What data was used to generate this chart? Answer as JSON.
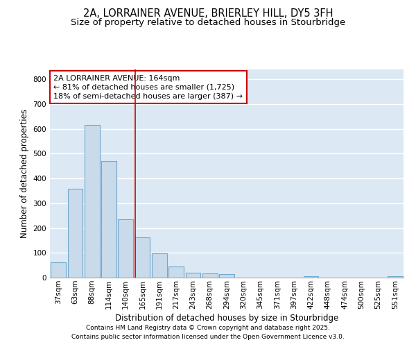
{
  "title_line1": "2A, LORRAINER AVENUE, BRIERLEY HILL, DY5 3FH",
  "title_line2": "Size of property relative to detached houses in Stourbridge",
  "xlabel": "Distribution of detached houses by size in Stourbridge",
  "ylabel": "Number of detached properties",
  "categories": [
    "37sqm",
    "63sqm",
    "88sqm",
    "114sqm",
    "140sqm",
    "165sqm",
    "191sqm",
    "217sqm",
    "243sqm",
    "268sqm",
    "294sqm",
    "320sqm",
    "345sqm",
    "371sqm",
    "397sqm",
    "422sqm",
    "448sqm",
    "474sqm",
    "500sqm",
    "525sqm",
    "551sqm"
  ],
  "values": [
    62,
    358,
    617,
    470,
    235,
    162,
    98,
    46,
    20,
    17,
    13,
    0,
    0,
    0,
    0,
    7,
    0,
    0,
    0,
    0,
    5
  ],
  "bar_color": "#c9daea",
  "bar_edge_color": "#6fa8cc",
  "vline_color": "#cc0000",
  "vline_x_index": 5,
  "annotation_text": "2A LORRAINER AVENUE: 164sqm\n← 81% of detached houses are smaller (1,725)\n18% of semi-detached houses are larger (387) →",
  "annotation_box_color": "#ffffff",
  "annotation_box_edge_color": "#cc0000",
  "annotation_fontsize": 8.0,
  "ylim": [
    0,
    840
  ],
  "yticks": [
    0,
    100,
    200,
    300,
    400,
    500,
    600,
    700,
    800
  ],
  "footer_line1": "Contains HM Land Registry data © Crown copyright and database right 2025.",
  "footer_line2": "Contains public sector information licensed under the Open Government Licence v3.0.",
  "fig_bg_color": "#ffffff",
  "plot_bg_color": "#dce9f5",
  "grid_color": "#ffffff",
  "title_fontsize": 10.5,
  "subtitle_fontsize": 9.5,
  "axis_label_fontsize": 8.5,
  "tick_fontsize": 7.5,
  "footer_fontsize": 6.5
}
